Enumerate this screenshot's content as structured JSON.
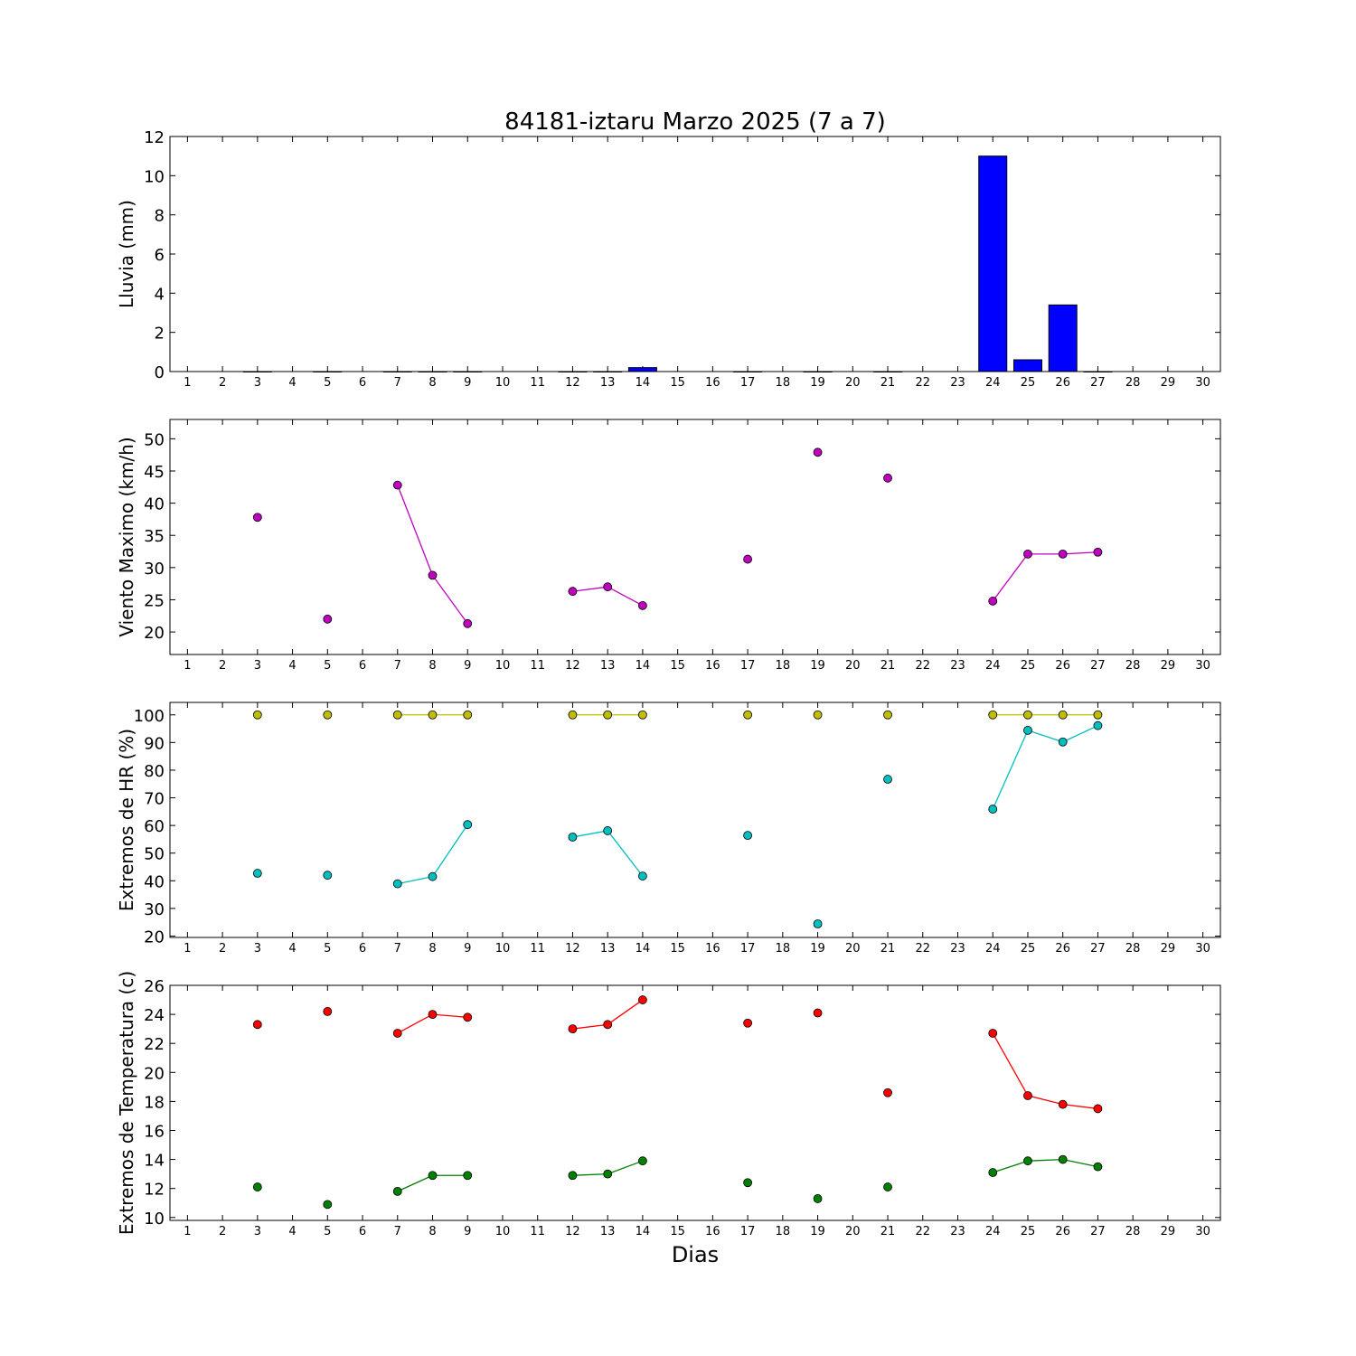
{
  "figure": {
    "title": "84181-iztaru Marzo 2025  (7 a 7)",
    "xlabel": "Dias"
  },
  "chart_data": [
    {
      "type": "bar",
      "ylabel": "Lluvia (mm)",
      "ylim": [
        0,
        12
      ],
      "yticks": [
        0,
        2,
        4,
        6,
        8,
        10,
        12
      ],
      "xlim": [
        0.5,
        30.5
      ],
      "xticks": [
        1,
        2,
        3,
        4,
        5,
        6,
        7,
        8,
        9,
        10,
        11,
        12,
        13,
        14,
        15,
        16,
        17,
        18,
        19,
        20,
        21,
        22,
        23,
        24,
        25,
        26,
        27,
        28,
        29,
        30
      ],
      "grid": false,
      "series": [
        {
          "color": "#0000ff",
          "points": [
            {
              "x": 3,
              "y": 0
            },
            {
              "x": 5,
              "y": 0
            },
            {
              "x": 7,
              "y": 0
            },
            {
              "x": 8,
              "y": 0
            },
            {
              "x": 9,
              "y": 0
            },
            {
              "x": 12,
              "y": 0
            },
            {
              "x": 13,
              "y": 0
            },
            {
              "x": 14,
              "y": 0.2
            },
            {
              "x": 17,
              "y": 0
            },
            {
              "x": 19,
              "y": 0
            },
            {
              "x": 21,
              "y": 0
            },
            {
              "x": 24,
              "y": 11.0
            },
            {
              "x": 25,
              "y": 0.6
            },
            {
              "x": 26,
              "y": 3.4
            },
            {
              "x": 27,
              "y": 0
            }
          ]
        }
      ]
    },
    {
      "type": "line",
      "ylabel": "Viento Maximo (km/h)",
      "ylim": [
        16.5,
        53
      ],
      "yticks": [
        20,
        25,
        30,
        35,
        40,
        45,
        50
      ],
      "xlim": [
        0.5,
        30.5
      ],
      "xticks": [
        1,
        2,
        3,
        4,
        5,
        6,
        7,
        8,
        9,
        10,
        11,
        12,
        13,
        14,
        15,
        16,
        17,
        18,
        19,
        20,
        21,
        22,
        23,
        24,
        25,
        26,
        27,
        28,
        29,
        30
      ],
      "grid": false,
      "series": [
        {
          "color": "#bf00bf",
          "points": [
            {
              "x": 3,
              "y": 37.8
            },
            {
              "x": 5,
              "y": 22.0
            },
            {
              "x": 7,
              "y": 42.8
            },
            {
              "x": 8,
              "y": 28.8
            },
            {
              "x": 9,
              "y": 21.3
            },
            {
              "x": 12,
              "y": 26.3
            },
            {
              "x": 13,
              "y": 27.0
            },
            {
              "x": 14,
              "y": 24.1
            },
            {
              "x": 17,
              "y": 31.3
            },
            {
              "x": 19,
              "y": 47.9
            },
            {
              "x": 21,
              "y": 43.9
            },
            {
              "x": 24,
              "y": 24.8
            },
            {
              "x": 25,
              "y": 32.1
            },
            {
              "x": 26,
              "y": 32.1
            },
            {
              "x": 27,
              "y": 32.4
            }
          ]
        }
      ]
    },
    {
      "type": "line",
      "ylabel": "Extremos de HR (%)",
      "ylim": [
        19.5,
        104.5
      ],
      "yticks": [
        20,
        30,
        40,
        50,
        60,
        70,
        80,
        90,
        100
      ],
      "xlim": [
        0.5,
        30.5
      ],
      "xticks": [
        1,
        2,
        3,
        4,
        5,
        6,
        7,
        8,
        9,
        10,
        11,
        12,
        13,
        14,
        15,
        16,
        17,
        18,
        19,
        20,
        21,
        22,
        23,
        24,
        25,
        26,
        27,
        28,
        29,
        30
      ],
      "grid": false,
      "series": [
        {
          "color": "#bfbf00",
          "points": [
            {
              "x": 3,
              "y": 100
            },
            {
              "x": 5,
              "y": 100
            },
            {
              "x": 7,
              "y": 100
            },
            {
              "x": 8,
              "y": 100
            },
            {
              "x": 9,
              "y": 100
            },
            {
              "x": 12,
              "y": 100
            },
            {
              "x": 13,
              "y": 100
            },
            {
              "x": 14,
              "y": 100
            },
            {
              "x": 17,
              "y": 100
            },
            {
              "x": 19,
              "y": 100
            },
            {
              "x": 21,
              "y": 100
            },
            {
              "x": 24,
              "y": 100
            },
            {
              "x": 25,
              "y": 100
            },
            {
              "x": 26,
              "y": 100
            },
            {
              "x": 27,
              "y": 100
            }
          ]
        },
        {
          "color": "#00bfbf",
          "points": [
            {
              "x": 3,
              "y": 42.7
            },
            {
              "x": 5,
              "y": 42.0
            },
            {
              "x": 7,
              "y": 38.9
            },
            {
              "x": 8,
              "y": 41.5
            },
            {
              "x": 9,
              "y": 60.3
            },
            {
              "x": 12,
              "y": 55.8
            },
            {
              "x": 13,
              "y": 58.1
            },
            {
              "x": 14,
              "y": 41.7
            },
            {
              "x": 17,
              "y": 56.4
            },
            {
              "x": 19,
              "y": 24.4
            },
            {
              "x": 21,
              "y": 76.7
            },
            {
              "x": 24,
              "y": 65.9
            },
            {
              "x": 25,
              "y": 94.4
            },
            {
              "x": 26,
              "y": 90.2
            },
            {
              "x": 27,
              "y": 96.1
            }
          ]
        }
      ]
    },
    {
      "type": "line",
      "ylabel": "Extremos de Temperatura (c)",
      "ylim": [
        9.8,
        26
      ],
      "yticks": [
        10,
        12,
        14,
        16,
        18,
        20,
        22,
        24,
        26
      ],
      "xlim": [
        0.5,
        30.5
      ],
      "xticks": [
        1,
        2,
        3,
        4,
        5,
        6,
        7,
        8,
        9,
        10,
        11,
        12,
        13,
        14,
        15,
        16,
        17,
        18,
        19,
        20,
        21,
        22,
        23,
        24,
        25,
        26,
        27,
        28,
        29,
        30
      ],
      "grid": false,
      "series": [
        {
          "color": "#ff0000",
          "points": [
            {
              "x": 3,
              "y": 23.3
            },
            {
              "x": 5,
              "y": 24.2
            },
            {
              "x": 7,
              "y": 22.7
            },
            {
              "x": 8,
              "y": 24.0
            },
            {
              "x": 9,
              "y": 23.8
            },
            {
              "x": 12,
              "y": 23.0
            },
            {
              "x": 13,
              "y": 23.3
            },
            {
              "x": 14,
              "y": 25.0
            },
            {
              "x": 17,
              "y": 23.4
            },
            {
              "x": 19,
              "y": 24.1
            },
            {
              "x": 21,
              "y": 18.6
            },
            {
              "x": 24,
              "y": 22.7
            },
            {
              "x": 25,
              "y": 18.4
            },
            {
              "x": 26,
              "y": 17.8
            },
            {
              "x": 27,
              "y": 17.5
            }
          ]
        },
        {
          "color": "#008000",
          "points": [
            {
              "x": 3,
              "y": 12.1
            },
            {
              "x": 5,
              "y": 10.9
            },
            {
              "x": 7,
              "y": 11.8
            },
            {
              "x": 8,
              "y": 12.9
            },
            {
              "x": 9,
              "y": 12.9
            },
            {
              "x": 12,
              "y": 12.9
            },
            {
              "x": 13,
              "y": 13.0
            },
            {
              "x": 14,
              "y": 13.9
            },
            {
              "x": 17,
              "y": 12.4
            },
            {
              "x": 19,
              "y": 11.3
            },
            {
              "x": 21,
              "y": 12.1
            },
            {
              "x": 24,
              "y": 13.1
            },
            {
              "x": 25,
              "y": 13.9
            },
            {
              "x": 26,
              "y": 14.0
            },
            {
              "x": 27,
              "y": 13.5
            }
          ]
        }
      ]
    }
  ]
}
